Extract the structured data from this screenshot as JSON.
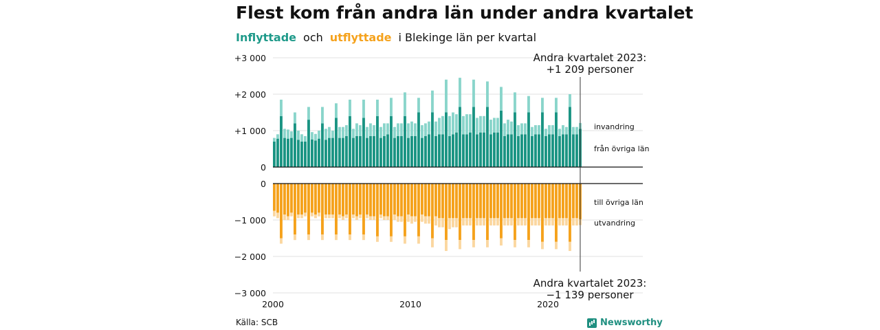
{
  "title": "Flest kom från andra län under andra kvartalet",
  "subtitle": {
    "inflyttade": "Inflyttade",
    "och": "och",
    "utflyttade": "utflyttade",
    "rest": "i Blekinge län per kvartal"
  },
  "source": "Källa: SCB",
  "brand": "Newsworthy",
  "colors": {
    "in_domestic": "#1a9483",
    "in_immigration": "#8ad5cb",
    "out_domestic": "#f5a21c",
    "out_emigration": "#fbd7a0"
  },
  "annotations": {
    "top_line1": "Andra kvartalet 2023:",
    "top_line2": "+1 209 personer",
    "bottom_line1": "Andra kvartalet 2023:",
    "bottom_line2": "−1 139 personer"
  },
  "series_labels": {
    "invandring": "invandring",
    "fran_ovriga_lan": "från övriga län",
    "till_ovriga_lan": "till övriga län",
    "utvandring": "utvandring"
  },
  "chart_data": {
    "type": "bar",
    "x_start": "2000 Q1",
    "x_ticks": [
      "2000",
      "2010",
      "2020"
    ],
    "y_ticks_top": [
      "+3 000",
      "+2 000",
      "+1 000",
      "0"
    ],
    "y_ticks_bottom": [
      "0",
      "−1 000",
      "−2 000",
      "−3 000"
    ],
    "ylim_top": [
      0,
      3000
    ],
    "ylim_bottom": [
      -3000,
      0
    ],
    "grid": true,
    "series": [
      {
        "name": "från övriga län",
        "values": [
          700,
          780,
          1400,
          800,
          780,
          800,
          1200,
          750,
          700,
          700,
          1300,
          760,
          730,
          780,
          1200,
          750,
          800,
          800,
          1350,
          800,
          800,
          850,
          1400,
          800,
          850,
          850,
          1350,
          800,
          850,
          850,
          1400,
          800,
          850,
          900,
          1400,
          800,
          850,
          850,
          1400,
          800,
          850,
          850,
          1500,
          800,
          850,
          900,
          1500,
          850,
          900,
          900,
          1500,
          850,
          900,
          950,
          1650,
          900,
          900,
          950,
          1650,
          900,
          950,
          950,
          1650,
          900,
          950,
          950,
          1550,
          850,
          900,
          900,
          1500,
          850,
          900,
          900,
          1500,
          850,
          900,
          900,
          1500,
          850,
          900,
          900,
          1500,
          850,
          900,
          900,
          1650,
          900,
          900,
          1050
        ]
      },
      {
        "name": "invandring",
        "values": [
          100,
          120,
          450,
          250,
          250,
          180,
          300,
          250,
          200,
          150,
          350,
          200,
          180,
          220,
          450,
          300,
          300,
          200,
          400,
          300,
          300,
          300,
          450,
          250,
          350,
          300,
          500,
          300,
          350,
          300,
          450,
          300,
          350,
          300,
          500,
          300,
          350,
          350,
          650,
          400,
          400,
          350,
          400,
          350,
          350,
          350,
          600,
          400,
          450,
          500,
          900,
          550,
          600,
          500,
          800,
          500,
          550,
          500,
          750,
          450,
          450,
          450,
          700,
          400,
          400,
          400,
          650,
          350,
          400,
          350,
          550,
          300,
          300,
          300,
          450,
          250,
          250,
          250,
          400,
          200,
          250,
          250,
          400,
          200,
          250,
          200,
          350,
          200,
          200,
          159
        ]
      },
      {
        "name": "till övriga län",
        "values": [
          -750,
          -800,
          -1500,
          -850,
          -900,
          -800,
          -1400,
          -850,
          -850,
          -800,
          -1400,
          -800,
          -850,
          -800,
          -1400,
          -850,
          -850,
          -850,
          -1400,
          -850,
          -900,
          -850,
          -1400,
          -850,
          -900,
          -850,
          -1400,
          -850,
          -900,
          -900,
          -1450,
          -850,
          -900,
          -900,
          -1450,
          -850,
          -900,
          -900,
          -1450,
          -850,
          -900,
          -900,
          -1450,
          -850,
          -900,
          -900,
          -1500,
          -900,
          -950,
          -950,
          -1550,
          -950,
          -950,
          -950,
          -1550,
          -950,
          -950,
          -950,
          -1550,
          -950,
          -950,
          -950,
          -1550,
          -950,
          -950,
          -950,
          -1500,
          -950,
          -950,
          -950,
          -1550,
          -950,
          -950,
          -950,
          -1550,
          -950,
          -950,
          -950,
          -1600,
          -950,
          -950,
          -950,
          -1600,
          -950,
          -950,
          -950,
          -1600,
          -950,
          -950,
          -980
        ]
      },
      {
        "name": "utvandring",
        "values": [
          -150,
          -150,
          -150,
          -150,
          -100,
          -100,
          -150,
          -100,
          -100,
          -100,
          -150,
          -100,
          -100,
          -100,
          -150,
          -100,
          -100,
          -100,
          -150,
          -100,
          -100,
          -100,
          -150,
          -100,
          -100,
          -100,
          -150,
          -100,
          -100,
          -100,
          -150,
          -100,
          -100,
          -100,
          -150,
          -150,
          -150,
          -150,
          -200,
          -200,
          -200,
          -150,
          -200,
          -200,
          -200,
          -200,
          -250,
          -250,
          -250,
          -250,
          -300,
          -300,
          -250,
          -250,
          -250,
          -200,
          -200,
          -200,
          -200,
          -200,
          -200,
          -200,
          -200,
          -200,
          -200,
          -200,
          -200,
          -200,
          -200,
          -200,
          -200,
          -200,
          -200,
          -200,
          -200,
          -200,
          -200,
          -200,
          -200,
          -200,
          -200,
          -200,
          -200,
          -200,
          -200,
          -200,
          -250,
          -200,
          -200,
          -159
        ]
      }
    ]
  }
}
